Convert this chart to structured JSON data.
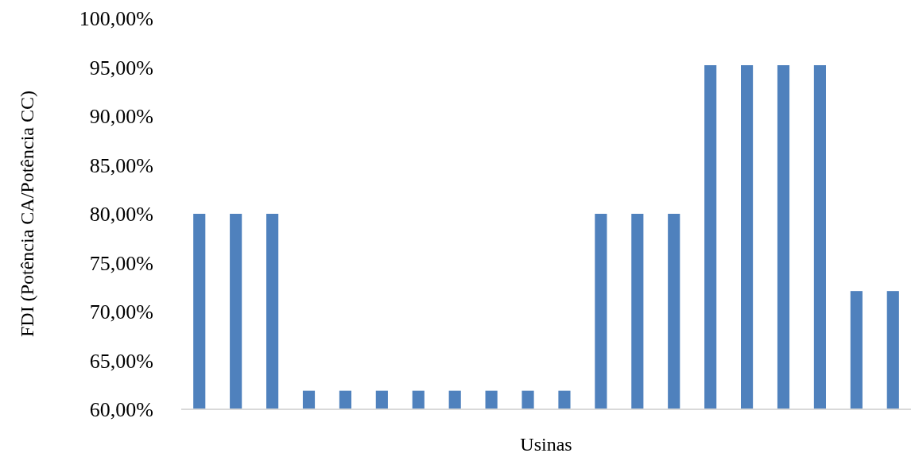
{
  "chart_data": {
    "type": "bar",
    "xlabel": "Usinas",
    "ylabel": "FDI (Potência CA/Potência CC)",
    "categories": [
      null,
      null,
      null,
      null,
      null,
      null,
      null,
      null,
      null,
      null,
      null,
      null,
      null,
      null,
      null,
      null,
      null,
      null,
      null,
      null
    ],
    "values": [
      80,
      80,
      80,
      61.9,
      61.9,
      61.9,
      61.9,
      61.9,
      61.9,
      61.9,
      61.9,
      80,
      80,
      80,
      95.2,
      95.2,
      95.2,
      95.2,
      72.1,
      72.1
    ],
    "color": "#4f81bd",
    "ylim": [
      60,
      100
    ],
    "yticks": [
      {
        "value": 60,
        "label": "60,00%"
      },
      {
        "value": 65,
        "label": "65,00%"
      },
      {
        "value": 70,
        "label": "70,00%"
      },
      {
        "value": 75,
        "label": "75,00%"
      },
      {
        "value": 80,
        "label": "80,00%"
      },
      {
        "value": 85,
        "label": "85,00%"
      },
      {
        "value": 90,
        "label": "90,00%"
      },
      {
        "value": 95,
        "label": "95,00%"
      },
      {
        "value": 100,
        "label": "100,00%"
      }
    ],
    "grid": false
  }
}
